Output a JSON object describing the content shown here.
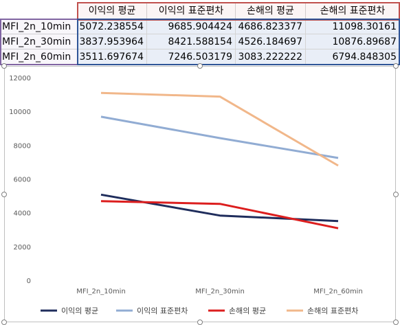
{
  "sheet": {
    "headers": [
      "이익의 평균",
      "이익의 표준편차",
      "손해의 평균",
      "손해의 표준편차"
    ],
    "rows": [
      {
        "label": "MFI_2n_10min",
        "values": [
          "5072.238554",
          "9685.904424",
          "4686.823377",
          "11098.30161"
        ]
      },
      {
        "label": "MFI_2n_30min",
        "values": [
          "3837.953964",
          "8421.588154",
          "4526.184697",
          "10876.89687"
        ]
      },
      {
        "label": "MFI_2n_60min",
        "values": [
          "3511.697674",
          "7246.503179",
          "3083.222222",
          "6794.848305"
        ]
      }
    ]
  },
  "chart_data": {
    "type": "line",
    "categories": [
      "MFI_2n_10min",
      "MFI_2n_30min",
      "MFI_2n_60min"
    ],
    "ylim": [
      0,
      12000
    ],
    "yticks": [
      0,
      2000,
      4000,
      6000,
      8000,
      10000,
      12000
    ],
    "grid": false,
    "legend_position": "bottom",
    "series": [
      {
        "name": "이익의 평균",
        "color": "#1f2d5c",
        "values": [
          5072.238554,
          3837.953964,
          3511.697674
        ]
      },
      {
        "name": "이익의 표준편차",
        "color": "#91acd3",
        "values": [
          9685.904424,
          8421.588154,
          7246.503179
        ]
      },
      {
        "name": "손해의 평균",
        "color": "#dc1e1e",
        "values": [
          4686.823377,
          4526.184697,
          3083.222222
        ]
      },
      {
        "name": "손해의 표준편차",
        "color": "#f1b78a",
        "values": [
          11098.30161,
          10876.89687,
          6794.848305
        ]
      }
    ]
  }
}
